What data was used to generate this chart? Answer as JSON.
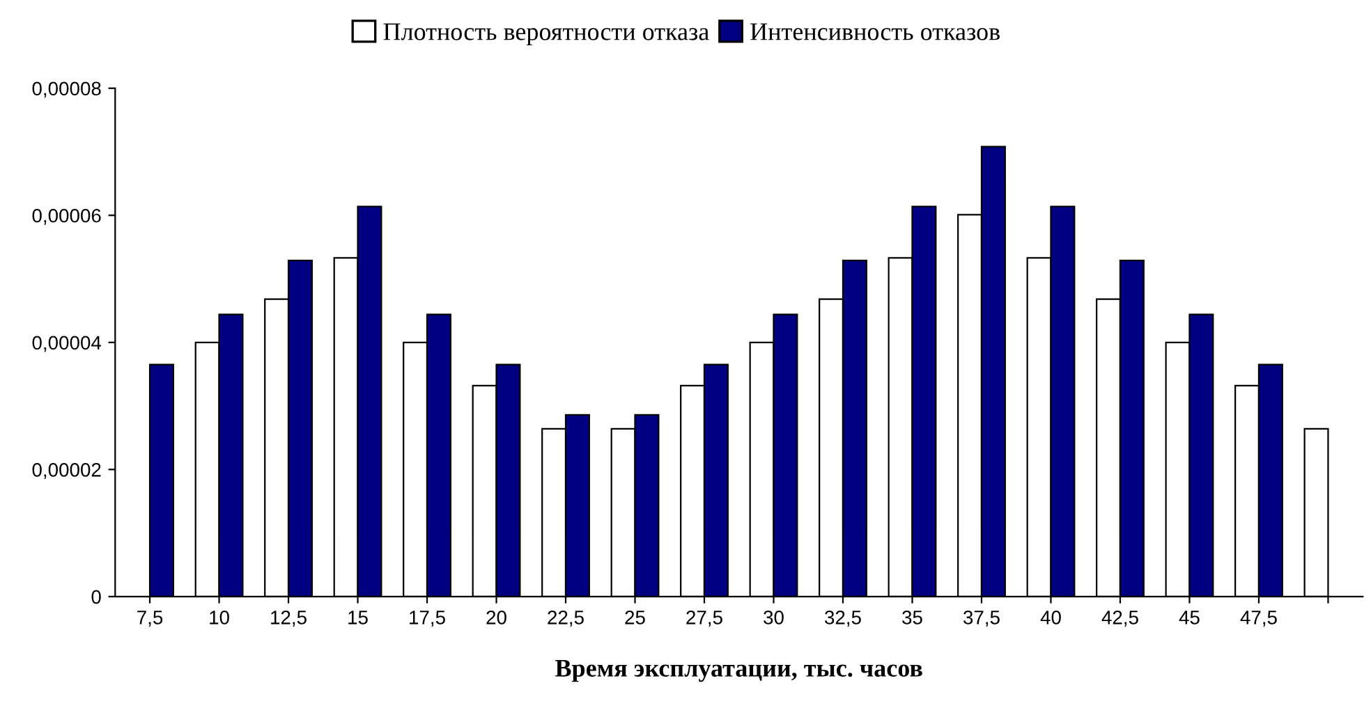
{
  "chart_data": {
    "type": "bar",
    "xlabel": "Время эксплуатации, тыс. часов",
    "categories": [
      "7,5",
      "10",
      "12,5",
      "15",
      "17,5",
      "20",
      "22,5",
      "25",
      "27,5",
      "30",
      "32,5",
      "35",
      "37,5",
      "40",
      "42,5",
      "45",
      "47,5",
      null
    ],
    "series": [
      {
        "name": "Плотность вероятности отказа",
        "color": "#ffffff",
        "values": [
          null,
          4e-05,
          4.68e-05,
          5.33e-05,
          4e-05,
          3.32e-05,
          2.64e-05,
          2.64e-05,
          3.32e-05,
          4e-05,
          4.68e-05,
          5.33e-05,
          6.01e-05,
          5.33e-05,
          4.68e-05,
          4e-05,
          3.32e-05,
          2.64e-05
        ]
      },
      {
        "name": "Интенсивность отказов",
        "color": "#000080",
        "values": [
          3.65e-05,
          4.44e-05,
          5.29e-05,
          6.14e-05,
          4.44e-05,
          3.65e-05,
          2.86e-05,
          2.86e-05,
          3.65e-05,
          4.44e-05,
          5.29e-05,
          6.14e-05,
          7.08e-05,
          6.14e-05,
          5.29e-05,
          4.44e-05,
          3.65e-05,
          null
        ]
      }
    ],
    "ylim": [
      0,
      8e-05
    ],
    "yticks": [
      {
        "value": 0,
        "label": "0"
      },
      {
        "value": 2e-05,
        "label": "0,00002"
      },
      {
        "value": 4e-05,
        "label": "0,00004"
      },
      {
        "value": 6e-05,
        "label": "0,00006"
      },
      {
        "value": 8e-05,
        "label": "0,00008"
      }
    ],
    "grid": false,
    "legend": "top"
  }
}
